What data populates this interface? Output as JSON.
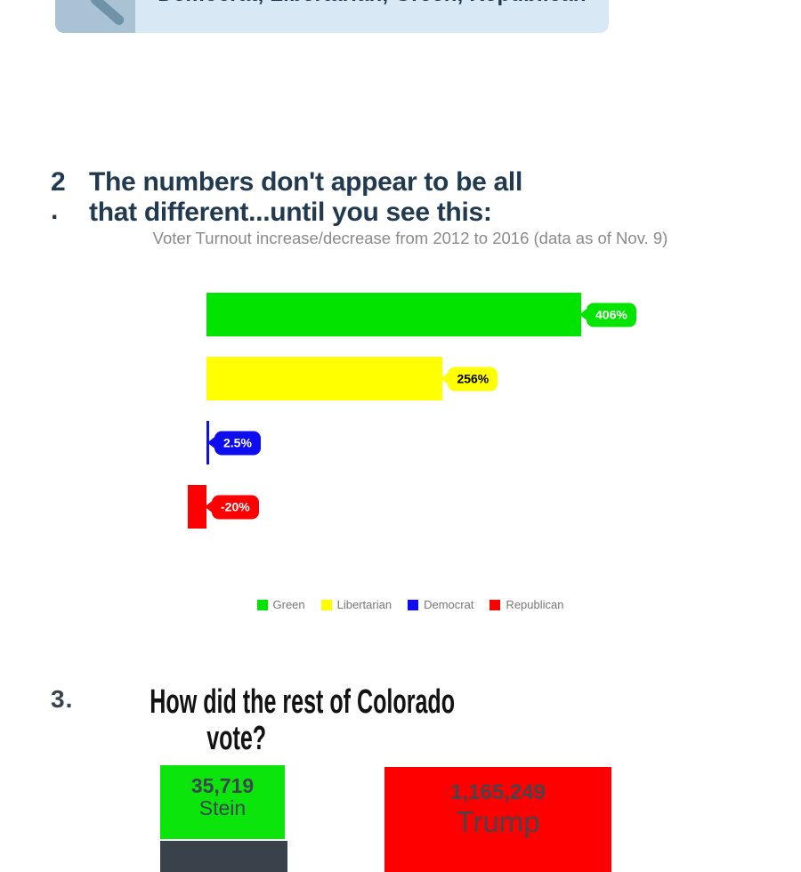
{
  "top_card": {
    "text": "Democrat, Libertarian, Green, Republican",
    "icon": "magnifier-icon",
    "card_bg": "#d8e9f5",
    "icon_bg": "#a9c2d4",
    "icon_color": "#6f92a8",
    "text_color": "#1d3a52"
  },
  "section2": {
    "marker_number": "2",
    "marker_dot": ".",
    "heading_line1": "The numbers don't appear to be all",
    "heading_line2": "that different...until you see this:",
    "heading_color": "#223a50",
    "subtitle": "Voter Turnout increase/decrease from 2012 to 2016 (data as of Nov. 9)"
  },
  "chart_data": [
    {
      "type": "bar",
      "orientation": "horizontal",
      "title": "Voter Turnout increase/decrease from 2012 to 2016 (data as of Nov. 9)",
      "categories": [
        "Green",
        "Libertarian",
        "Democrat",
        "Republican"
      ],
      "values": [
        406,
        256,
        2.5,
        -20
      ],
      "value_labels": [
        "406%",
        "256%",
        "2.5%",
        "-20%"
      ],
      "colors": [
        "#00e400",
        "#ffff00",
        "#0d0df0",
        "#ff0000"
      ],
      "label_text_colors": [
        "#ffffff",
        "#000000",
        "#ffffff",
        "#ffffff"
      ],
      "unit": "%",
      "xlim": [
        -20,
        406
      ],
      "grid": false,
      "axis_labels_shown": false,
      "legend_position": "bottom"
    },
    {
      "type": "bar",
      "orientation": "vertical",
      "title": "How did the rest of Colorado vote?",
      "categories": [
        "Stein",
        "Trump"
      ],
      "values": [
        35719,
        1165249
      ],
      "value_labels": [
        "35,719",
        "1,165,249"
      ],
      "colors": [
        "#0ce50c",
        "#fe0000"
      ],
      "note_partial": "third dark bar partially visible, no label shown"
    }
  ],
  "section3": {
    "marker": "3.",
    "heading_line1": "How did the rest of Colorado",
    "heading_line2": "vote?",
    "marker_color": "#39424e",
    "heading_color": "#131313"
  },
  "vote_blocks": [
    {
      "value": "35,719",
      "name": "Stein",
      "bg": "#0ce50c",
      "text_color": "#3d464e"
    },
    {
      "value": "1,165,249",
      "name": "Trump",
      "bg": "#fe0000",
      "text_color": "#4a4349"
    },
    {
      "value": "",
      "name": "",
      "bg": "#39424b",
      "text_color": "#39424b"
    }
  ]
}
